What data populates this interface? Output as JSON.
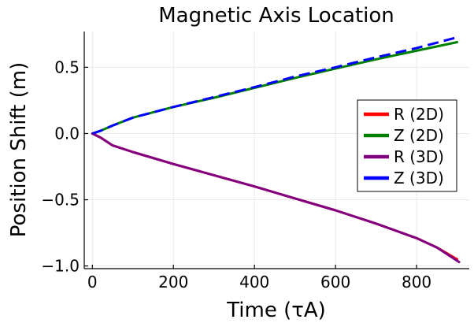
{
  "chart_data": {
    "type": "line",
    "title": "Magnetic Axis Location",
    "xlabel": "Time (τA)",
    "ylabel": "Position Shift (m)",
    "xlim": [
      -20,
      930
    ],
    "ylim": [
      -1.02,
      0.77
    ],
    "xticks": [
      0,
      200,
      400,
      600,
      800
    ],
    "xtick_labels": [
      "0",
      "200",
      "400",
      "600",
      "800"
    ],
    "yticks": [
      -1.0,
      -0.5,
      0.0,
      0.5
    ],
    "ytick_labels": [
      "−1.0",
      "−0.5",
      "0.0",
      "0.5"
    ],
    "grid": true,
    "legend_position": "right",
    "series": [
      {
        "name": "R (2D)",
        "color": "#ff0000",
        "style": "solid",
        "points": [
          [
            0,
            0
          ],
          [
            20,
            -0.03
          ],
          [
            50,
            -0.09
          ],
          [
            100,
            -0.14
          ],
          [
            200,
            -0.23
          ],
          [
            300,
            -0.315
          ],
          [
            400,
            -0.4
          ],
          [
            500,
            -0.49
          ],
          [
            600,
            -0.58
          ],
          [
            700,
            -0.68
          ],
          [
            800,
            -0.79
          ],
          [
            850,
            -0.86
          ],
          [
            900,
            -0.95
          ]
        ]
      },
      {
        "name": "Z (2D)",
        "color": "#008000",
        "style": "solid",
        "points": [
          [
            0,
            0
          ],
          [
            20,
            0.02
          ],
          [
            50,
            0.06
          ],
          [
            100,
            0.12
          ],
          [
            200,
            0.2
          ],
          [
            300,
            0.27
          ],
          [
            400,
            0.345
          ],
          [
            500,
            0.42
          ],
          [
            600,
            0.49
          ],
          [
            700,
            0.56
          ],
          [
            800,
            0.625
          ],
          [
            900,
            0.69
          ]
        ]
      },
      {
        "name": "R (3D)",
        "color": "#800080",
        "style": "solid",
        "points": [
          [
            0,
            0
          ],
          [
            20,
            -0.03
          ],
          [
            50,
            -0.09
          ],
          [
            100,
            -0.14
          ],
          [
            200,
            -0.23
          ],
          [
            300,
            -0.315
          ],
          [
            400,
            -0.4
          ],
          [
            500,
            -0.49
          ],
          [
            600,
            -0.58
          ],
          [
            700,
            -0.68
          ],
          [
            800,
            -0.79
          ],
          [
            850,
            -0.86
          ],
          [
            905,
            -0.97
          ]
        ]
      },
      {
        "name": "Z (3D)",
        "color": "#0000ff",
        "style": "dashed",
        "points": [
          [
            0,
            0
          ],
          [
            20,
            0.02
          ],
          [
            50,
            0.06
          ],
          [
            100,
            0.12
          ],
          [
            200,
            0.2
          ],
          [
            300,
            0.275
          ],
          [
            400,
            0.35
          ],
          [
            500,
            0.43
          ],
          [
            600,
            0.5
          ],
          [
            700,
            0.575
          ],
          [
            800,
            0.645
          ],
          [
            905,
            0.73
          ]
        ]
      }
    ]
  }
}
